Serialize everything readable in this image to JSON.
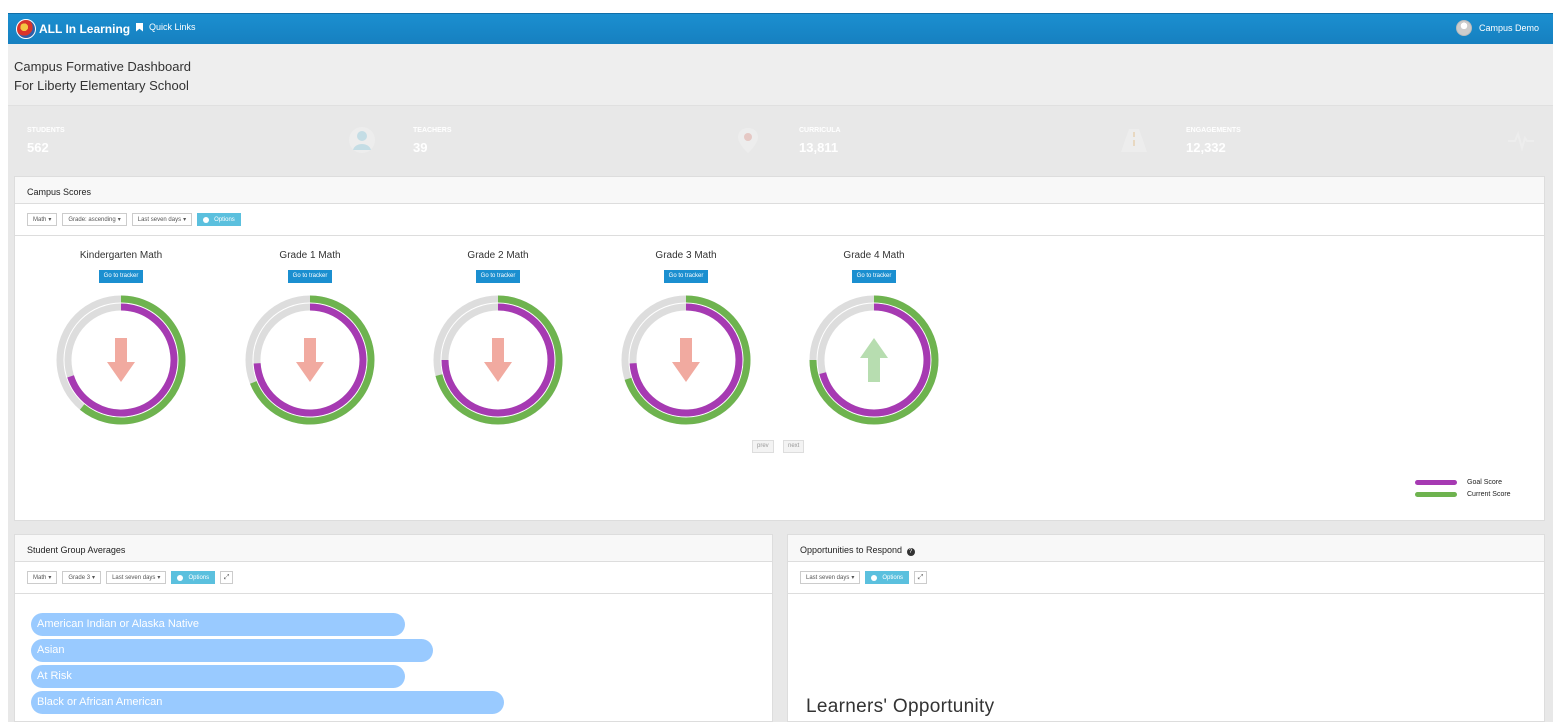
{
  "nav": {
    "brand": "ALL In Learning",
    "quick_links": "Quick Links",
    "user": "Campus Demo"
  },
  "header": {
    "title": "Campus Formative Dashboard",
    "subtitle": "For Liberty Elementary School"
  },
  "stats": [
    {
      "label": "STUDENTS",
      "value": "562",
      "color": "#4ab8dc",
      "icon": "user-icon"
    },
    {
      "label": "TEACHERS",
      "value": "39",
      "color": "#df5a4a",
      "icon": "map-marker-icon"
    },
    {
      "label": "CURRICULA",
      "value": "13,811",
      "color": "#eca23b",
      "icon": "road-icon"
    },
    {
      "label": "ENGAGEMENTS",
      "value": "12,332",
      "color": "#6cae56",
      "icon": "pulse-icon"
    }
  ],
  "campus_scores": {
    "title": "Campus Scores",
    "filters": [
      "Math",
      "Grade: ascending",
      "Last seven days"
    ],
    "options": "Options",
    "gauges": [
      {
        "title": "Kindergarten Math",
        "button": "Go to tracker",
        "goal": 0.7,
        "current": 0.61,
        "trend": "down"
      },
      {
        "title": "Grade 1 Math",
        "button": "Go to tracker",
        "goal": 0.74,
        "current": 0.69,
        "trend": "down"
      },
      {
        "title": "Grade 2 Math",
        "button": "Go to tracker",
        "goal": 0.75,
        "current": 0.71,
        "trend": "down"
      },
      {
        "title": "Grade 3 Math",
        "button": "Go to tracker",
        "goal": 0.74,
        "current": 0.7,
        "trend": "down"
      },
      {
        "title": "Grade 4 Math",
        "button": "Go to tracker",
        "goal": 0.71,
        "current": 0.75,
        "trend": "up"
      }
    ],
    "prev": "prev",
    "next": "next",
    "legend": [
      {
        "label": "Goal Score",
        "color": "#a63ab2"
      },
      {
        "label": "Current Score",
        "color": "#6eb34f"
      }
    ]
  },
  "student_groups": {
    "title": "Student Group Averages",
    "filters": [
      "Math",
      "Grade 3",
      "Last seven days"
    ],
    "options": "Options",
    "groups": [
      {
        "name": "American Indian or Alaska Native",
        "value": 0.68
      },
      {
        "name": "Asian",
        "value": 0.73
      },
      {
        "name": "At Risk",
        "value": 0.68
      },
      {
        "name": "Black or African American",
        "value": 0.86
      }
    ]
  },
  "otr": {
    "title": "Opportunities to Respond",
    "filter": "Last seven days",
    "options": "Options",
    "chart_heading": "Learners' Opportunity"
  },
  "colors": {
    "nav": "#1b8fd0",
    "goal": "#a63ab2",
    "current": "#6eb34f",
    "track": "#dddddd",
    "down_arrow": "#f1aaa0",
    "up_arrow": "#b7ddb0",
    "group_bar": "#99caff"
  }
}
